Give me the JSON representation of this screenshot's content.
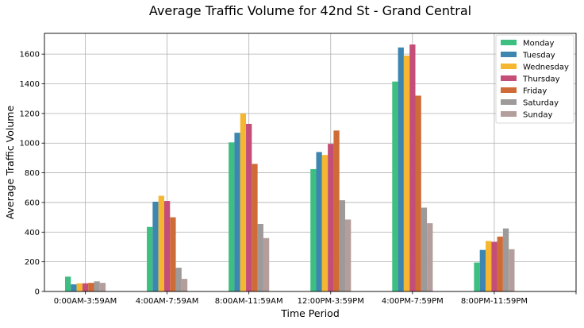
{
  "chart_data": {
    "type": "bar",
    "title": "Average Traffic Volume for 42nd St - Grand Central",
    "xlabel": "Time Period",
    "ylabel": "Average Traffic Volume",
    "ylim": [
      0,
      1740
    ],
    "yticks": [
      0,
      200,
      400,
      600,
      800,
      1000,
      1200,
      1400,
      1600
    ],
    "grid": true,
    "legend_position": "top-right",
    "categories": [
      "0:00AM-3:59AM",
      "4:00AM-7:59AM",
      "8:00AM-11:59AM",
      "12:00PM-3:59PM",
      "4:00PM-7:59PM",
      "8:00PM-11:59PM"
    ],
    "series": [
      {
        "name": "Monday",
        "color": "#3dbf82",
        "values": [
          100,
          435,
          1005,
          825,
          1415,
          195
        ]
      },
      {
        "name": "Tuesday",
        "color": "#3d86b0",
        "values": [
          48,
          605,
          1070,
          940,
          1645,
          280
        ]
      },
      {
        "name": "Wednesday",
        "color": "#f5b731",
        "values": [
          55,
          645,
          1200,
          920,
          1590,
          340
        ]
      },
      {
        "name": "Thursday",
        "color": "#c44e78",
        "values": [
          55,
          610,
          1130,
          995,
          1665,
          335
        ]
      },
      {
        "name": "Friday",
        "color": "#cf6b36",
        "values": [
          58,
          500,
          860,
          1085,
          1320,
          370
        ]
      },
      {
        "name": "Saturday",
        "color": "#9e9a9a",
        "values": [
          68,
          160,
          455,
          615,
          565,
          425
        ]
      },
      {
        "name": "Sunday",
        "color": "#b39e9b",
        "values": [
          58,
          85,
          360,
          485,
          460,
          285
        ]
      }
    ]
  }
}
